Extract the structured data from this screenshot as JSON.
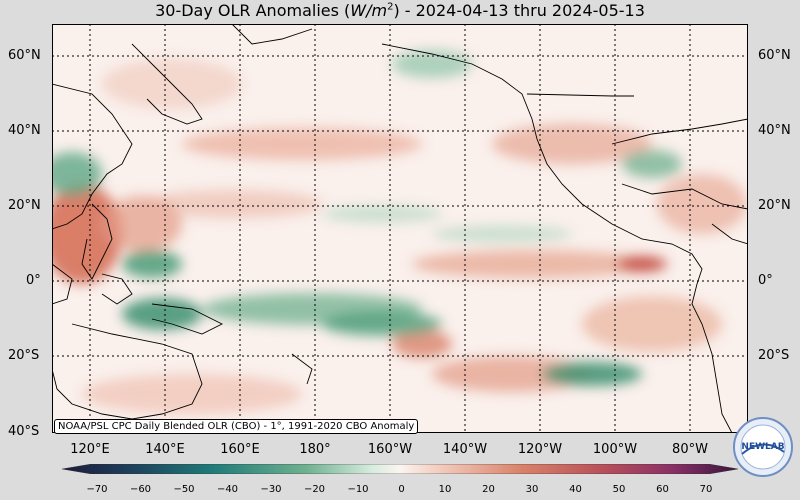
{
  "title": {
    "prefix": "30-Day OLR Anomalies (",
    "unit_main": "W/m",
    "unit_sup": "2",
    "suffix": ") - 2024-04-13 thru 2024-05-13"
  },
  "lat_labels": [
    "60°N",
    "40°N",
    "20°N",
    "0°",
    "20°S",
    "40°S"
  ],
  "lon_labels": [
    "120°E",
    "140°E",
    "160°E",
    "180°",
    "160°W",
    "140°W",
    "120°W",
    "100°W",
    "80°W"
  ],
  "credit": "NOAA/PSL CPC Daily Blended OLR (CBO) - 1°, 1991-2020 CBO Anomaly",
  "colorbar": {
    "ticks": [
      "−70",
      "−60",
      "−50",
      "−40",
      "−30",
      "−20",
      "−10",
      "0",
      "10",
      "20",
      "30",
      "40",
      "50",
      "60",
      "70"
    ],
    "min": -70,
    "max": 70
  },
  "logo_text": "NEWLAB",
  "map": {
    "lat_range": [
      "40°S",
      "67°N"
    ],
    "lon_range": [
      "106°E",
      "74°W"
    ],
    "grid_step": "20°"
  },
  "colors": {
    "negative": "#2e8b6a",
    "positive": "#c8553d",
    "neutral": "#faf0ec"
  }
}
